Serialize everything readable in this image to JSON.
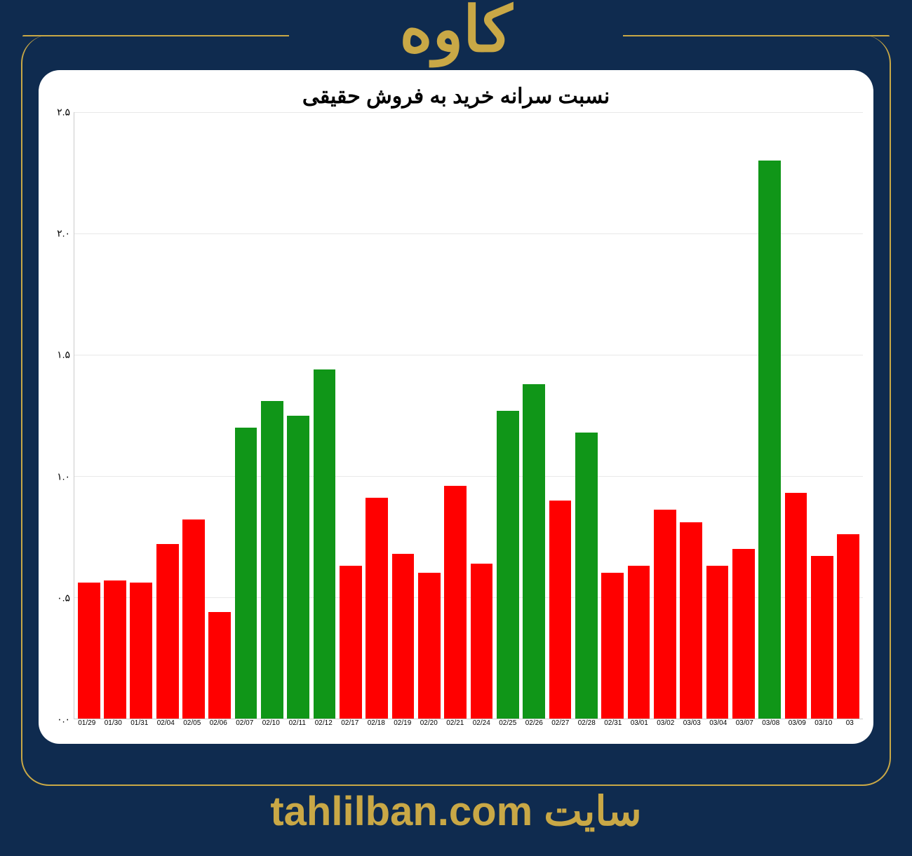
{
  "header": {
    "title": "کاوه",
    "title_color": "#c9a846",
    "title_fontsize": 90
  },
  "footer": {
    "text": "سایت tahlilban.com",
    "text_color": "#c9a846",
    "text_fontsize": 58
  },
  "page": {
    "background_color": "#0f2b4f",
    "frame_border_color": "#c9a846",
    "frame_border_radius": 40
  },
  "chart": {
    "type": "bar",
    "title": "نسبت سرانه خرید به فروش حقیقی",
    "title_fontsize": 30,
    "title_color": "#000000",
    "background_color": "#ffffff",
    "card_border_radius": 30,
    "ylim": [
      0.0,
      2.5
    ],
    "ytick_step": 0.5,
    "ytick_labels": [
      "۰.۰",
      "۰.۵",
      "۱.۰",
      "۱.۵",
      "۲.۰",
      "۲.۵"
    ],
    "grid_color": "#e8e8e8",
    "x_label_fontsize": 10,
    "y_label_fontsize": 14,
    "bar_width": 0.85,
    "categories": [
      "01/29",
      "01/30",
      "01/31",
      "02/04",
      "02/05",
      "02/06",
      "02/07",
      "02/10",
      "02/11",
      "02/12",
      "02/17",
      "02/18",
      "02/19",
      "02/20",
      "02/21",
      "02/24",
      "02/25",
      "02/26",
      "02/27",
      "02/28",
      "02/31",
      "03/01",
      "03/02",
      "03/03",
      "03/04",
      "03/07",
      "03/08",
      "03/09",
      "03/10",
      "03"
    ],
    "values": [
      0.56,
      0.57,
      0.56,
      0.72,
      0.82,
      0.44,
      1.2,
      1.31,
      1.25,
      1.44,
      0.63,
      0.91,
      0.68,
      0.6,
      0.96,
      0.64,
      1.27,
      1.38,
      0.9,
      1.18,
      0.6,
      0.63,
      0.86,
      0.81,
      0.63,
      0.7,
      2.3,
      0.93,
      0.67,
      0.76
    ],
    "bar_colors": [
      "#ff0000",
      "#ff0000",
      "#ff0000",
      "#ff0000",
      "#ff0000",
      "#ff0000",
      "#109618",
      "#109618",
      "#109618",
      "#109618",
      "#ff0000",
      "#ff0000",
      "#ff0000",
      "#ff0000",
      "#ff0000",
      "#ff0000",
      "#109618",
      "#109618",
      "#ff0000",
      "#109618",
      "#ff0000",
      "#ff0000",
      "#ff0000",
      "#ff0000",
      "#ff0000",
      "#ff0000",
      "#109618",
      "#ff0000",
      "#ff0000",
      "#ff0000"
    ]
  }
}
